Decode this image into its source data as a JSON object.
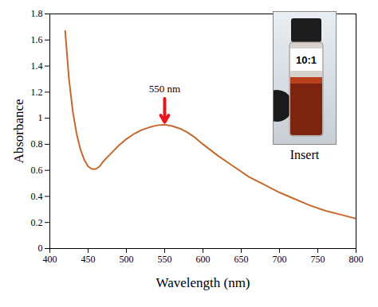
{
  "chart_data": {
    "type": "line",
    "x": [
      420,
      425,
      430,
      435,
      440,
      445,
      450,
      455,
      460,
      465,
      470,
      480,
      490,
      500,
      510,
      520,
      530,
      540,
      550,
      560,
      570,
      580,
      590,
      600,
      620,
      640,
      660,
      680,
      700,
      720,
      740,
      760,
      780,
      800
    ],
    "values": [
      1.67,
      1.3,
      1.05,
      0.88,
      0.76,
      0.68,
      0.63,
      0.61,
      0.61,
      0.63,
      0.67,
      0.73,
      0.79,
      0.84,
      0.88,
      0.91,
      0.93,
      0.945,
      0.95,
      0.94,
      0.92,
      0.89,
      0.85,
      0.8,
      0.71,
      0.63,
      0.55,
      0.49,
      0.43,
      0.38,
      0.33,
      0.29,
      0.26,
      0.23
    ],
    "color": "#c46a2f",
    "xlabel": "Wavelength (nm)",
    "ylabel": "Absorbance",
    "xlim": [
      400,
      800
    ],
    "xticks": [
      400,
      450,
      500,
      550,
      600,
      650,
      700,
      750,
      800
    ],
    "ylim": [
      0,
      1.8
    ],
    "yticks": [
      0,
      0.2,
      0.4,
      0.6,
      0.8,
      1,
      1.2,
      1.4,
      1.6,
      1.8
    ],
    "grid": false,
    "annotations": [
      {
        "text": "550 nm",
        "x": 550
      }
    ],
    "inset": {
      "label": "10:1",
      "caption": "Insert"
    }
  }
}
